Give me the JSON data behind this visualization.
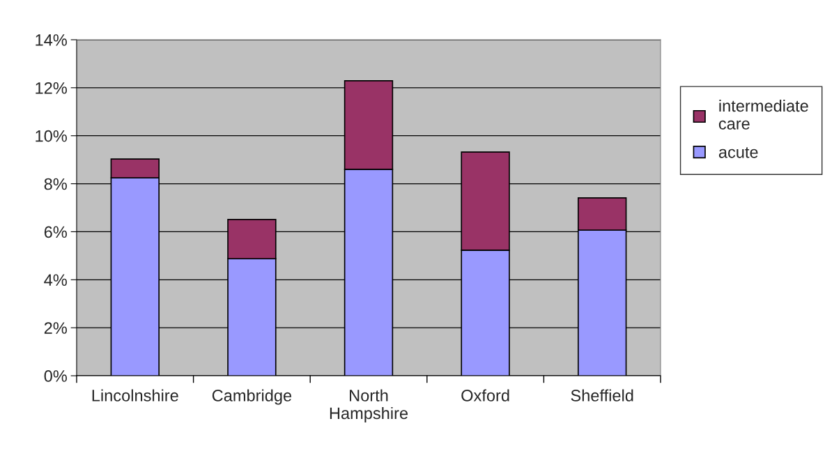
{
  "chart_data": {
    "type": "bar",
    "stacked": true,
    "categories": [
      "Lincolnshire",
      "Cambridge",
      "North\nHampshire",
      "Oxford",
      "Sheffield"
    ],
    "series": [
      {
        "name": "acute",
        "color": "#9999ff",
        "values": [
          8.25,
          4.88,
          8.6,
          5.23,
          6.07
        ]
      },
      {
        "name": "intermediate\ncare",
        "color": "#993366",
        "values": [
          0.78,
          1.63,
          3.69,
          4.09,
          1.34
        ]
      }
    ],
    "ylim": [
      0,
      14
    ],
    "yticks": [
      {
        "value": 0,
        "label": "0%"
      },
      {
        "value": 2,
        "label": "2%"
      },
      {
        "value": 4,
        "label": "4%"
      },
      {
        "value": 6,
        "label": "6%"
      },
      {
        "value": 8,
        "label": "8%"
      },
      {
        "value": 10,
        "label": "10%"
      },
      {
        "value": 12,
        "label": "12%"
      },
      {
        "value": 14,
        "label": "14%"
      }
    ],
    "grid": "y",
    "legend": "right"
  }
}
